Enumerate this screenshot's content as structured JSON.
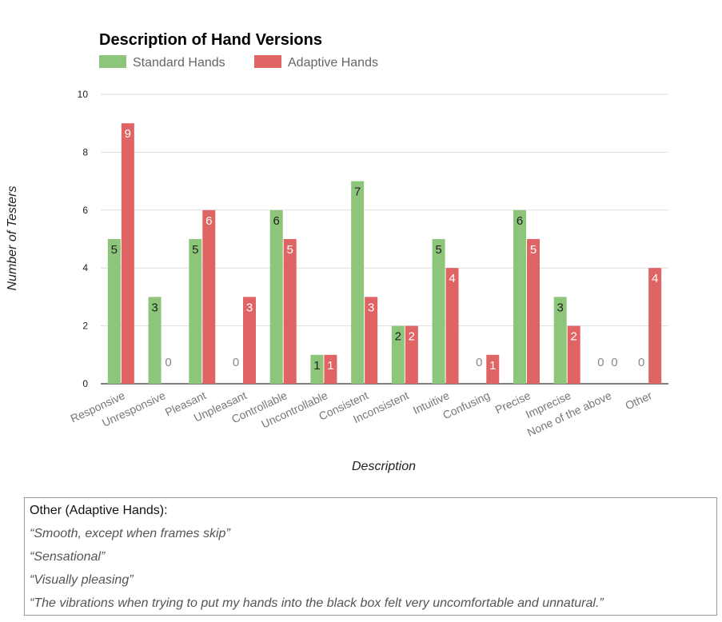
{
  "chart_data": {
    "type": "bar",
    "title": "Description of Hand Versions",
    "xlabel": "Description",
    "ylabel": "Number of Testers",
    "ylim": [
      0,
      10
    ],
    "yticks": [
      0,
      2,
      4,
      6,
      8,
      10
    ],
    "grid": true,
    "legend_position": "top-left",
    "categories": [
      "Responsive",
      "Unresponsive",
      "Pleasant",
      "Unpleasant",
      "Controllable",
      "Uncontrollable",
      "Consistent",
      "Inconsistent",
      "Intuitive",
      "Confusing",
      "Precise",
      "Imprecise",
      "None of the above",
      "Other"
    ],
    "series": [
      {
        "name": "Standard Hands",
        "color": "#8dc57b",
        "values": [
          5,
          3,
          5,
          0,
          6,
          1,
          7,
          2,
          5,
          0,
          6,
          3,
          0,
          0
        ]
      },
      {
        "name": "Adaptive Hands",
        "color": "#e06464",
        "values": [
          9,
          0,
          6,
          3,
          5,
          1,
          3,
          2,
          4,
          1,
          5,
          2,
          0,
          4
        ]
      }
    ]
  },
  "notes": {
    "heading": "Other (Adaptive Hands):",
    "quotes": [
      "“Smooth, except when frames skip”",
      "“Sensational”",
      "“Visually pleasing”",
      "“The vibrations when trying to put my hands into the black box felt very uncomfortable and unnatural.”"
    ]
  }
}
